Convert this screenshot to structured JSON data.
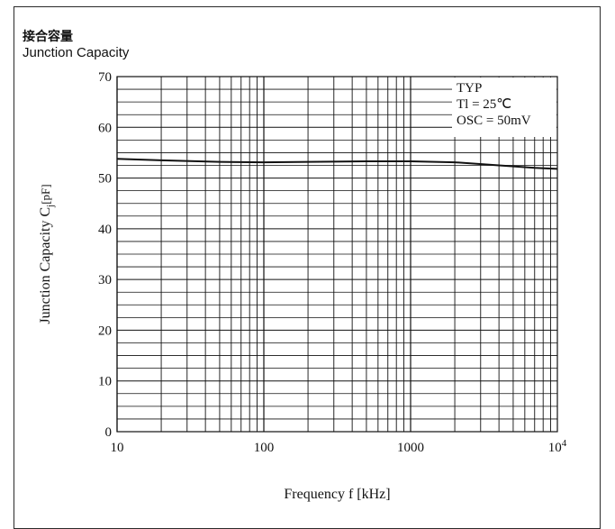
{
  "chart_data": {
    "type": "line",
    "title_jp": "接合容量",
    "title": "Junction  Capacity",
    "xlabel": "Frequency f [kHz]",
    "ylabel_main": "Junction    Capacity C",
    "ylabel_sub": "j",
    "ylabel_unit": "[pF]",
    "x_scale": "log",
    "xlim": [
      10,
      10000
    ],
    "ylim": [
      0,
      70
    ],
    "x_ticks": [
      {
        "value": 10,
        "label": "10"
      },
      {
        "value": 100,
        "label": "100"
      },
      {
        "value": 1000,
        "label": "1000"
      }
    ],
    "x_last_tick": {
      "value": 10000,
      "base": "10",
      "exp": "4"
    },
    "y_ticks": [
      0,
      10,
      20,
      30,
      40,
      50,
      60,
      70
    ],
    "grid": true,
    "legend": [
      "TYP",
      "Tl  =  25℃",
      "OSC =  50mV"
    ],
    "legend_position": "top-right",
    "series": [
      {
        "x": [
          10,
          20,
          50,
          100,
          200,
          500,
          1000,
          2000,
          4000,
          7000,
          10000
        ],
        "y": [
          53.8,
          53.5,
          53.2,
          53.1,
          53.2,
          53.3,
          53.3,
          53.1,
          52.5,
          52.0,
          51.8
        ]
      }
    ]
  }
}
